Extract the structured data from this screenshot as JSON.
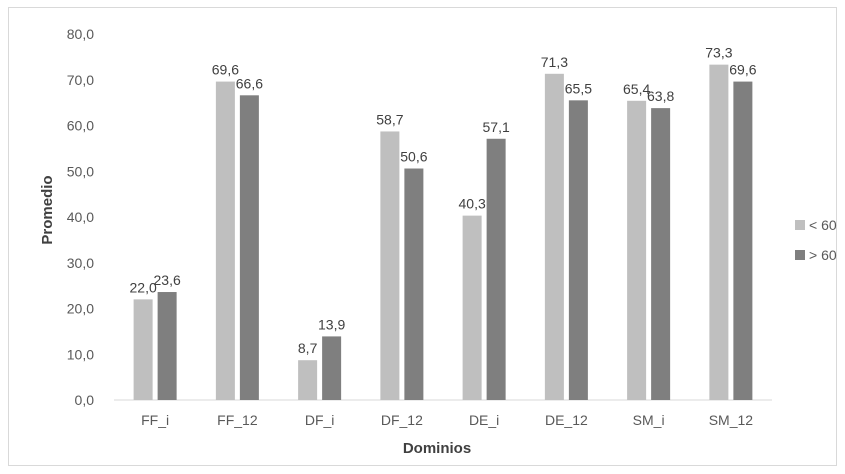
{
  "chart_data": {
    "type": "bar",
    "xlabel": "Dominios",
    "ylabel": "Promedio",
    "ylim": [
      0,
      80
    ],
    "yticks": [
      "0,0",
      "10,0",
      "20,0",
      "30,0",
      "40,0",
      "50,0",
      "60,0",
      "70,0",
      "80,0"
    ],
    "categories": [
      "FF_i",
      "FF_12",
      "DF_i",
      "DF_12",
      "DE_i",
      "DE_12",
      "SM_i",
      "SM_12"
    ],
    "series": [
      {
        "name": "< 60",
        "color": "#bfbfbf",
        "values": [
          22.0,
          69.6,
          8.7,
          58.7,
          40.3,
          71.3,
          65.4,
          73.3
        ],
        "labels": [
          "22,0",
          "69,6",
          "8,7",
          "58,7",
          "40,3",
          "71,3",
          "65,4",
          "73,3"
        ]
      },
      {
        "name": "> 60",
        "color": "#7f7f7f",
        "values": [
          23.6,
          66.6,
          13.9,
          50.6,
          57.1,
          65.5,
          63.8,
          69.6
        ],
        "labels": [
          "23,6",
          "66,6",
          "13,9",
          "50,6",
          "57,1",
          "65,5",
          "63,8",
          "69,6"
        ]
      }
    ],
    "grid": false,
    "legend": "right"
  }
}
